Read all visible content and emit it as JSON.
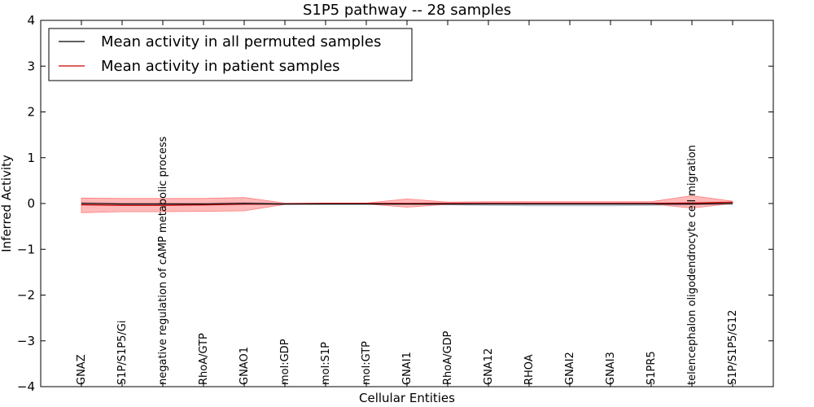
{
  "chart_data": {
    "type": "line",
    "title": "S1P5 pathway -- 28 samples",
    "xlabel": "Cellular Entities",
    "ylabel": "Inferred Activity",
    "ylim": [
      -4,
      4
    ],
    "yticks": [
      -4,
      -3,
      -2,
      -1,
      0,
      1,
      2,
      3,
      4
    ],
    "ytick_labels": [
      "−4",
      "−3",
      "−2",
      "−1",
      "0",
      "1",
      "2",
      "3",
      "4"
    ],
    "categories": [
      "GNAZ",
      "S1P/S1P5/Gi",
      "negative regulation of cAMP metabolic process",
      "RhoA/GTP",
      "GNAO1",
      "mol:GDP",
      "mol:S1P",
      "mol:GTP",
      "GNAI1",
      "RhoA/GDP",
      "GNA12",
      "RHOA",
      "GNAI2",
      "GNAI3",
      "S1PR5",
      "telencephalon oligodendrocyte cell migration",
      "S1P/S1P5/G12"
    ],
    "legend_position": "top-left",
    "series": [
      {
        "name": "Mean activity in all permuted samples",
        "color": "#000000",
        "band_color": "#b4b4c8",
        "values": [
          0.0,
          -0.01,
          -0.01,
          -0.01,
          0.0,
          -0.01,
          -0.01,
          -0.01,
          -0.01,
          -0.01,
          -0.01,
          -0.01,
          -0.01,
          -0.01,
          -0.01,
          -0.01,
          0.0
        ],
        "lower": [
          -0.03,
          -0.04,
          -0.04,
          -0.04,
          -0.03,
          -0.02,
          -0.02,
          -0.02,
          -0.02,
          -0.03,
          -0.04,
          -0.05,
          -0.05,
          -0.05,
          -0.04,
          -0.03,
          -0.02
        ],
        "upper": [
          0.03,
          0.02,
          0.02,
          0.02,
          0.03,
          0.01,
          0.01,
          0.01,
          0.01,
          0.02,
          0.02,
          0.02,
          0.02,
          0.02,
          0.02,
          0.02,
          0.02
        ]
      },
      {
        "name": "Mean activity in patient samples",
        "color": "#cc0000",
        "band_color": "#ff7f7f",
        "values": [
          -0.03,
          -0.04,
          -0.04,
          -0.03,
          -0.01,
          -0.01,
          0.0,
          0.0,
          0.0,
          0.0,
          0.0,
          0.0,
          0.0,
          0.0,
          0.0,
          0.01,
          0.03
        ],
        "lower": [
          -0.2,
          -0.18,
          -0.18,
          -0.17,
          -0.16,
          -0.02,
          -0.01,
          -0.01,
          -0.08,
          -0.02,
          -0.01,
          -0.01,
          -0.01,
          -0.01,
          -0.01,
          -0.1,
          0.0
        ],
        "upper": [
          0.12,
          0.11,
          0.11,
          0.11,
          0.13,
          0.01,
          0.01,
          0.01,
          0.1,
          0.03,
          0.04,
          0.04,
          0.04,
          0.04,
          0.04,
          0.17,
          0.05
        ]
      }
    ]
  }
}
